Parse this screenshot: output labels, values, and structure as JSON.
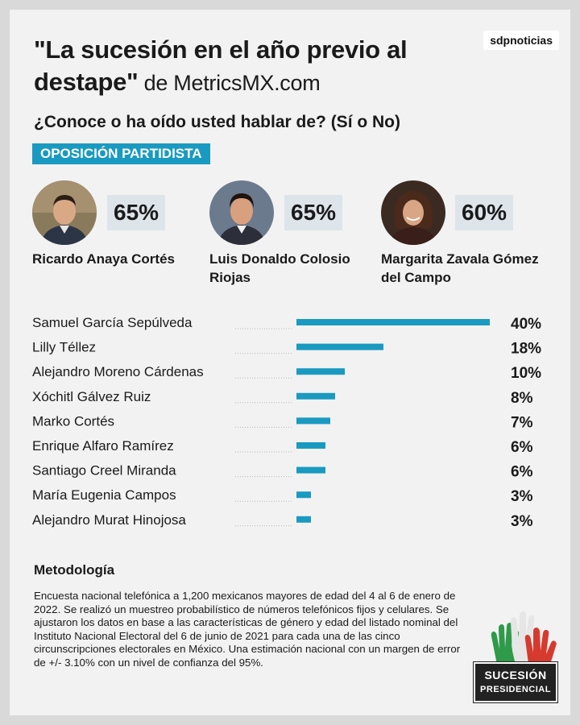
{
  "brand": "sdpnoticias",
  "title": {
    "main": "\"La sucesión en el año previo al destape\"",
    "by": " de MetricsMX.com"
  },
  "question": "¿Conoce o ha oído usted hablar de? (Sí o No)",
  "section": "OPOSICIÓN PARTIDISTA",
  "highlights": [
    {
      "name": "Ricardo Anaya Cortés",
      "value": "65%"
    },
    {
      "name": "Luis Donaldo Colosio Riojas",
      "value": "65%"
    },
    {
      "name": "Margarita Zavala Gómez del Campo",
      "value": "60%"
    }
  ],
  "chart_data": {
    "type": "bar",
    "orientation": "horizontal",
    "categories": [
      "Samuel García Sepúlveda",
      "Lilly Téllez",
      "Alejandro Moreno Cárdenas",
      "Xóchitl Gálvez Ruiz",
      "Marko Cortés",
      "Enrique Alfaro Ramírez",
      "Santiago Creel Miranda",
      "María Eugenia Campos",
      "Alejandro Murat Hinojosa"
    ],
    "values": [
      40,
      18,
      10,
      8,
      7,
      6,
      6,
      3,
      3
    ],
    "value_labels": [
      "40%",
      "18%",
      "10%",
      "8%",
      "7%",
      "6%",
      "6%",
      "3%",
      "3%"
    ],
    "bar_color": "#1a9ac0",
    "xlim": [
      0,
      40
    ]
  },
  "methodology": {
    "heading": "Metodología",
    "text": "Encuesta nacional telefónica a 1,200 mexicanos mayores de edad del 4 al 6 de enero de 2022. Se realizó un muestreo probabilístico de números telefónicos fijos y celulares. Se ajustaron los datos en base a las características de género y edad del listado nominal del Instituto Nacional Electoral del 6 de junio de 2021 para cada una de las cinco circunscripciones electorales en México. Una estimación nacional con un margen de error de +/- 3.10% con un nivel de confianza del 95%."
  },
  "logo": {
    "line1": "SUCESIÓN",
    "line2": "PRESIDENCIAL"
  }
}
